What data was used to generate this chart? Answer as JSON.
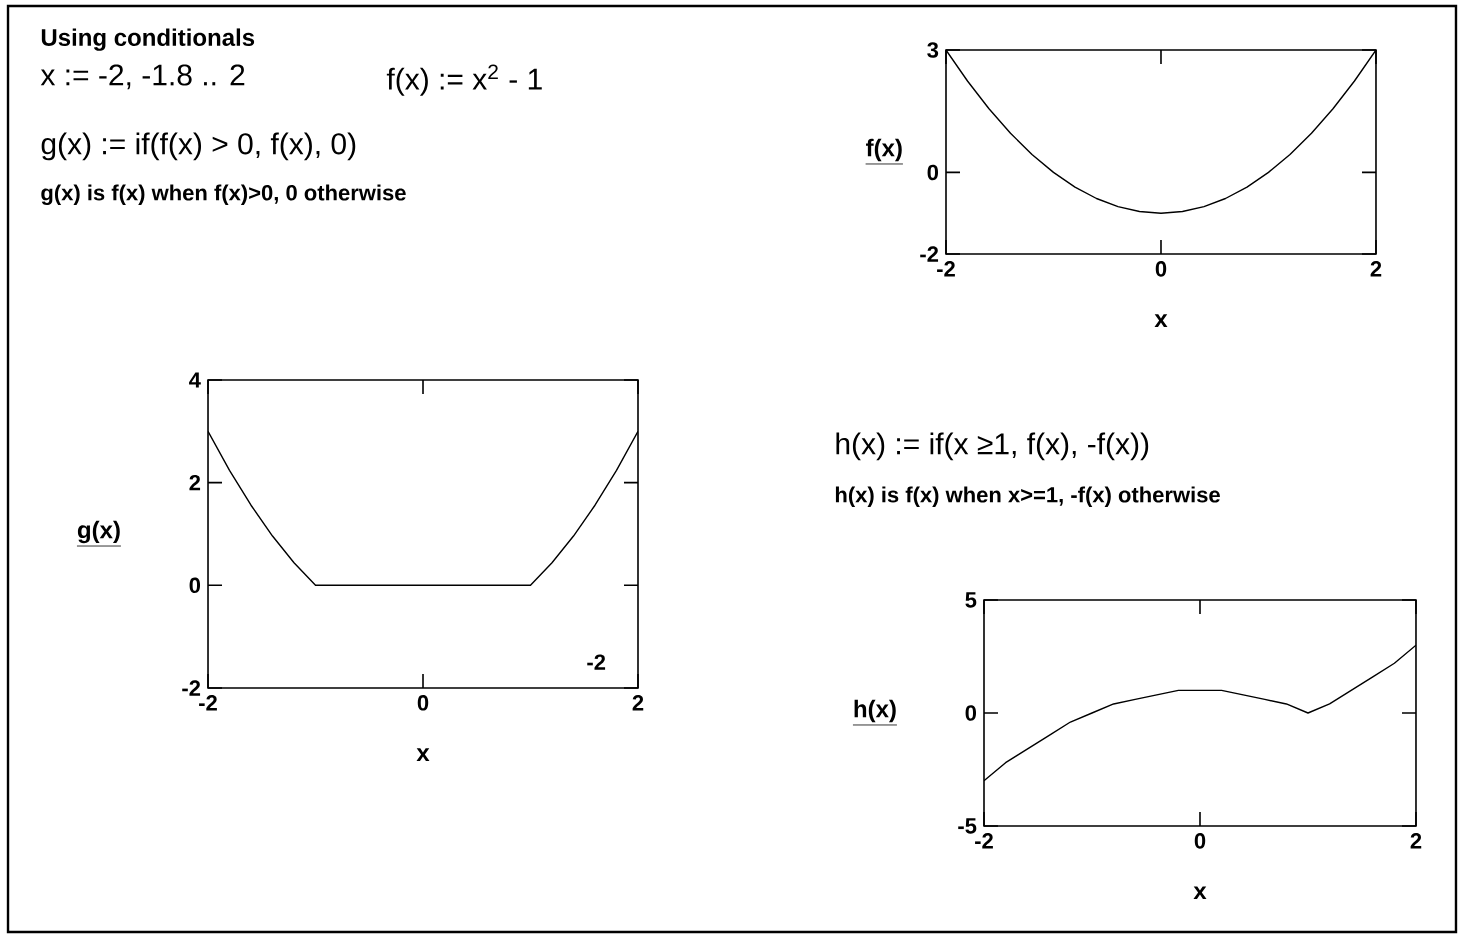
{
  "chart_data": [
    {
      "type": "line",
      "xlabel": "x",
      "ylabel": "f(x)",
      "annotations": [
        "x := -2, -1.8 .. 2",
        "f(x) := x$^{2}$ - 1"
      ],
      "x": [
        -2,
        -1.8,
        -1.6,
        -1.4,
        -1.2,
        -1,
        -0.8,
        -0.6,
        -0.4,
        -0.2,
        0,
        0.2,
        0.4,
        0.6,
        0.8,
        1,
        1.2,
        1.4,
        1.6,
        1.8,
        2
      ],
      "series": [
        {
          "color": "#000000",
          "values": [
            3,
            2.24,
            1.56,
            0.96,
            0.44,
            0,
            -0.36,
            -0.64,
            -0.84,
            -0.96,
            -1,
            -0.96,
            -0.84,
            -0.64,
            -0.36,
            0,
            0.44,
            0.96,
            1.56,
            2.24,
            3
          ]
        }
      ],
      "xlim": [
        -2,
        2
      ],
      "ylim": [
        -2,
        3
      ],
      "xticks": [
        -2,
        0,
        2
      ],
      "yticks": [
        -2,
        0,
        3
      ]
    },
    {
      "type": "line",
      "title": "Using conditionals",
      "xlabel": "x",
      "ylabel": "g(x)",
      "annotations": [
        "g(x) := if(f(x) > 0, f(x), 0)",
        "g(x) is f(x) when f(x)>0, 0 otherwise",
        "-2"
      ],
      "x": [
        -2,
        -1.8,
        -1.6,
        -1.4,
        -1.2,
        -1,
        -0.8,
        -0.6,
        -0.4,
        -0.2,
        0,
        0.2,
        0.4,
        0.6,
        0.8,
        1,
        1.2,
        1.4,
        1.6,
        1.8,
        2
      ],
      "series": [
        {
          "color": "#000000",
          "values": [
            3,
            2.24,
            1.56,
            0.96,
            0.44,
            0,
            0,
            0,
            0,
            0,
            0,
            0,
            0,
            0,
            0,
            0,
            0.44,
            0.96,
            1.56,
            2.24,
            3
          ]
        }
      ],
      "xlim": [
        -2,
        2
      ],
      "ylim": [
        -2,
        4
      ],
      "xticks": [
        -2,
        0,
        2
      ],
      "yticks": [
        -2,
        0,
        2,
        4
      ]
    },
    {
      "type": "line",
      "xlabel": "x",
      "ylabel": "h(x)",
      "annotations": [
        "h(x) := if(x ≥1, f(x), -f(x))",
        "h(x) is f(x) when x>=1, -f(x) otherwise"
      ],
      "x": [
        -2,
        -1.8,
        -1.6,
        -1.4,
        -1.2,
        -1,
        -0.8,
        -0.6,
        -0.4,
        -0.2,
        0,
        0.2,
        0.4,
        0.6,
        0.8,
        1,
        1.2,
        1.4,
        1.6,
        1.8,
        2
      ],
      "series": [
        {
          "color": "#000000",
          "values": [
            -3,
            -2.2,
            -1.6,
            -1,
            -0.4,
            0,
            0.4,
            0.6,
            0.8,
            1,
            1,
            1,
            0.8,
            0.6,
            0.4,
            0,
            0.4,
            1,
            1.6,
            2.2,
            3
          ]
        }
      ],
      "xlim": [
        -2,
        2
      ],
      "ylim": [
        -5,
        5
      ],
      "xticks": [
        -2,
        0,
        2
      ],
      "yticks": [
        -5,
        0,
        5
      ]
    }
  ]
}
